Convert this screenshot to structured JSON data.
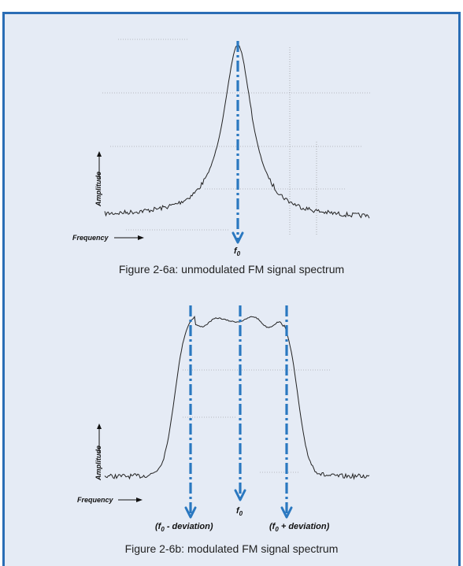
{
  "figure_a": {
    "y_axis_label": "Amplitude",
    "x_axis_label": "Frequency",
    "marker_label": {
      "main": "f",
      "sub": "0"
    },
    "caption": "Figure 2-6a: unmodulated FM signal spectrum"
  },
  "figure_b": {
    "y_axis_label": "Amplitude",
    "x_axis_label": "Frequency",
    "marker_labels": [
      {
        "pre": "(f",
        "sub": "0",
        "post": " - deviation)"
      },
      {
        "pre": "f",
        "sub": "0",
        "post": ""
      },
      {
        "pre": "(f",
        "sub": "0",
        "post": " + deviation)"
      }
    ],
    "caption": "Figure 2-6b: modulated FM signal spectrum"
  }
}
